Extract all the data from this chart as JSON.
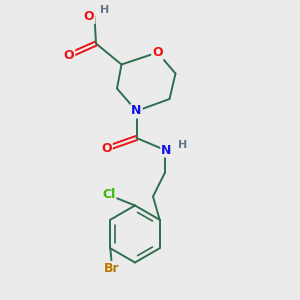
{
  "background_color": "#ebebeb",
  "bond_color": "#2d6e4e",
  "atom_colors": {
    "O": "#ee1111",
    "N": "#1111ee",
    "Br": "#bb7700",
    "Cl": "#33bb00",
    "C": "#2d6e4e",
    "H": "#667788"
  },
  "figsize": [
    3.0,
    3.0
  ],
  "dpi": 100
}
